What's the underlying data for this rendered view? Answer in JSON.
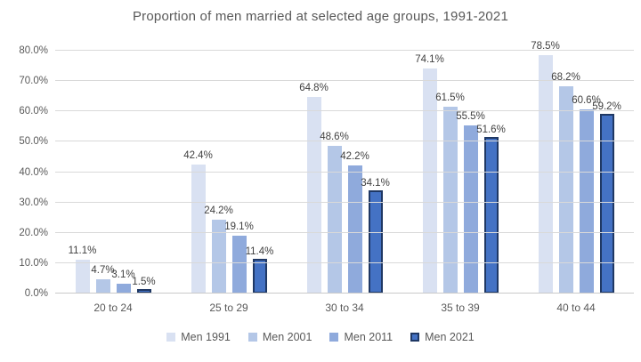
{
  "chart_data": {
    "type": "bar",
    "title": "Proportion of men married at selected age groups, 1991-2021",
    "categories": [
      "20 to 24",
      "25 to 29",
      "30 to 34",
      "35 to 39",
      "40 to 44"
    ],
    "series": [
      {
        "name": "Men 1991",
        "values": [
          11.1,
          42.4,
          64.8,
          74.1,
          78.5
        ],
        "labels": [
          "11.1%",
          "42.4%",
          "64.8%",
          "74.1%",
          "78.5%"
        ],
        "color": "#D9E1F2"
      },
      {
        "name": "Men 2001",
        "values": [
          4.7,
          24.2,
          48.6,
          61.5,
          68.2
        ],
        "labels": [
          "4.7%",
          "24.2%",
          "48.6%",
          "61.5%",
          "68.2%"
        ],
        "color": "#B4C7E7"
      },
      {
        "name": "Men 2011",
        "values": [
          3.1,
          19.1,
          42.2,
          55.5,
          60.6
        ],
        "labels": [
          "3.1%",
          "19.1%",
          "42.2%",
          "55.5%",
          "60.6%"
        ],
        "color": "#8FAADC"
      },
      {
        "name": "Men 2021",
        "values": [
          1.5,
          11.4,
          34.1,
          51.6,
          59.2
        ],
        "labels": [
          "1.5%",
          "11.4%",
          "34.1%",
          "51.6%",
          "59.2%"
        ],
        "color": "#4472C4",
        "border_color": "#1F3864"
      }
    ],
    "ylim": [
      0,
      80
    ],
    "ytick_step": 10,
    "ytick_labels": [
      "0.0%",
      "10.0%",
      "20.0%",
      "30.0%",
      "40.0%",
      "50.0%",
      "60.0%",
      "70.0%",
      "80.0%"
    ],
    "grid": true,
    "legend_position": "bottom"
  },
  "colors": {
    "background": "#FFFFFF",
    "gridline": "#D9D9D9",
    "axis_line": "#C9C9C9",
    "title_text": "#595959",
    "axis_text": "#595959",
    "data_label_text": "#404040",
    "legend_text": "#595959"
  }
}
